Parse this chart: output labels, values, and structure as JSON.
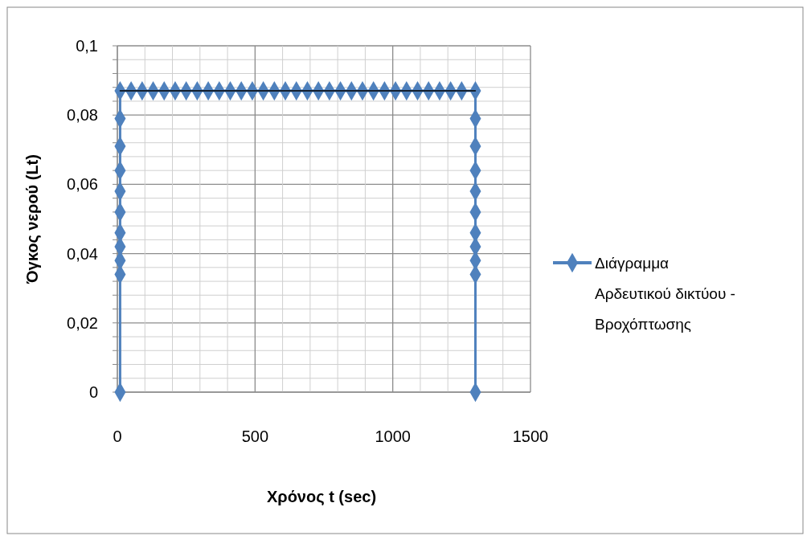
{
  "chart_data": {
    "type": "line",
    "xlabel": "Χρόνος t (sec)",
    "ylabel": "Όγκος νερού (Lt)",
    "xlim": [
      0,
      1500
    ],
    "ylim": [
      0,
      0.1
    ],
    "xticks": [
      0,
      {
        "value": 100,
        "label": null
      },
      {
        "value": 200,
        "label": null
      },
      {
        "value": 300,
        "label": null
      },
      {
        "value": 400,
        "label": null
      },
      500,
      {
        "value": 600,
        "label": null
      },
      {
        "value": 700,
        "label": null
      },
      {
        "value": 800,
        "label": null
      },
      {
        "value": 900,
        "label": null
      },
      1000,
      {
        "value": 1100,
        "label": null
      },
      {
        "value": 1200,
        "label": null
      },
      {
        "value": 1300,
        "label": null
      },
      {
        "value": 1400,
        "label": null
      },
      1500
    ],
    "yticks": [
      0,
      {
        "value": 0.004,
        "label": null
      },
      {
        "value": 0.008,
        "label": null
      },
      {
        "value": 0.012,
        "label": null
      },
      {
        "value": 0.016,
        "label": null
      },
      {
        "value": 0.02,
        "label": "0,02"
      },
      {
        "value": 0.024,
        "label": null
      },
      {
        "value": 0.028,
        "label": null
      },
      {
        "value": 0.032,
        "label": null
      },
      {
        "value": 0.036,
        "label": null
      },
      {
        "value": 0.04,
        "label": "0,04"
      },
      {
        "value": 0.044,
        "label": null
      },
      {
        "value": 0.048,
        "label": null
      },
      {
        "value": 0.052,
        "label": null
      },
      {
        "value": 0.056,
        "label": null
      },
      {
        "value": 0.06,
        "label": "0,06"
      },
      {
        "value": 0.064,
        "label": null
      },
      {
        "value": 0.068,
        "label": null
      },
      {
        "value": 0.072,
        "label": null
      },
      {
        "value": 0.076,
        "label": null
      },
      {
        "value": 0.08,
        "label": "0,08"
      },
      {
        "value": 0.084,
        "label": null
      },
      {
        "value": 0.088,
        "label": null
      },
      {
        "value": 0.092,
        "label": null
      },
      {
        "value": 0.096,
        "label": null
      },
      {
        "value": 0.1,
        "label": "0,1"
      }
    ],
    "grid": true,
    "legend": "right",
    "series": [
      {
        "name": "Διάγραμμα Αρδευτικού δικτύου - Βροχόπτωσης",
        "color": "#4f81bd",
        "marker": "diamond",
        "line_style": "solid",
        "x": [
          10,
          10,
          10,
          10,
          10,
          10,
          10,
          10,
          10,
          10,
          10,
          50,
          90,
          130,
          170,
          210,
          250,
          290,
          330,
          370,
          410,
          450,
          490,
          530,
          570,
          610,
          650,
          690,
          730,
          770,
          810,
          850,
          890,
          930,
          970,
          1010,
          1050,
          1090,
          1130,
          1170,
          1210,
          1250,
          1300,
          1300,
          1300,
          1300,
          1300,
          1300,
          1300,
          1300,
          1300,
          1300,
          1300
        ],
        "values": [
          0,
          0.034,
          0.038,
          0.042,
          0.046,
          0.052,
          0.058,
          0.064,
          0.071,
          0.079,
          0.087,
          0.087,
          0.087,
          0.087,
          0.087,
          0.087,
          0.087,
          0.087,
          0.087,
          0.087,
          0.087,
          0.087,
          0.087,
          0.087,
          0.087,
          0.087,
          0.087,
          0.087,
          0.087,
          0.087,
          0.087,
          0.087,
          0.087,
          0.087,
          0.087,
          0.087,
          0.087,
          0.087,
          0.087,
          0.087,
          0.087,
          0.087,
          0.087,
          0.079,
          0.071,
          0.064,
          0.058,
          0.052,
          0.046,
          0.042,
          0.038,
          0.034,
          0
        ]
      },
      {
        "color": "#000000",
        "marker": "none",
        "line_style": "solid",
        "x": [
          10,
          1300
        ],
        "values": [
          0.087,
          0.087
        ]
      }
    ]
  }
}
